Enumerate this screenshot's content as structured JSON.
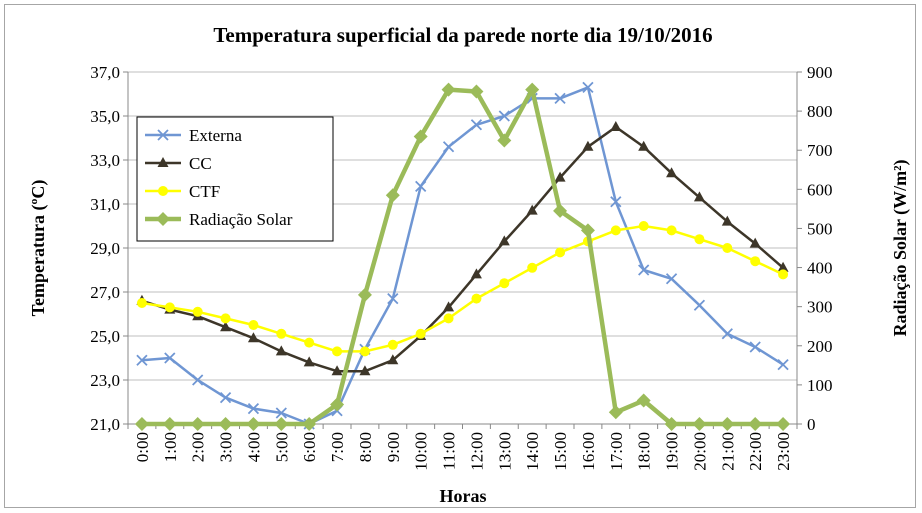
{
  "chart_data": {
    "type": "line",
    "title": "Temperatura superficial da parede norte dia 19/10/2016",
    "xlabel": "Horas",
    "ylabel": "Temperatura (ºC)",
    "y2label": "Radiação Solar (W/m²)",
    "categories": [
      "0:00",
      "1:00",
      "2:00",
      "3:00",
      "4:00",
      "5:00",
      "6:00",
      "7:00",
      "8:00",
      "9:00",
      "10:00",
      "11:00",
      "12:00",
      "13:00",
      "14:00",
      "15:00",
      "16:00",
      "17:00",
      "18:00",
      "19:00",
      "20:00",
      "21:00",
      "22:00",
      "23:00"
    ],
    "ylim": [
      21,
      37
    ],
    "y_ticks": [
      "21,0",
      "23,0",
      "25,0",
      "27,0",
      "29,0",
      "31,0",
      "33,0",
      "35,0",
      "37,0"
    ],
    "y2lim": [
      0,
      900
    ],
    "y2_ticks": [
      "0",
      "100",
      "200",
      "300",
      "400",
      "500",
      "600",
      "700",
      "800",
      "900"
    ],
    "grid": true,
    "legend_position": "top-left",
    "series": [
      {
        "name": "Externa",
        "axis": "left",
        "color": "#6f96d3",
        "marker": "x",
        "values": [
          23.9,
          24.0,
          23.0,
          22.2,
          21.7,
          21.5,
          21.0,
          21.6,
          24.4,
          26.7,
          31.8,
          33.6,
          34.6,
          35.0,
          35.8,
          35.8,
          36.3,
          31.1,
          28.0,
          27.6,
          26.4,
          25.1,
          24.5,
          23.7
        ]
      },
      {
        "name": "CC",
        "axis": "left",
        "color": "#3d3629",
        "marker": "triangle",
        "values": [
          26.6,
          26.2,
          25.9,
          25.4,
          24.9,
          24.3,
          23.8,
          23.4,
          23.4,
          23.9,
          25.0,
          26.3,
          27.8,
          29.3,
          30.7,
          32.2,
          33.6,
          34.5,
          33.6,
          32.4,
          31.3,
          30.2,
          29.2,
          28.1
        ]
      },
      {
        "name": "CTF",
        "axis": "left",
        "color": "#ffff00",
        "marker": "circle",
        "values": [
          26.5,
          26.3,
          26.1,
          25.8,
          25.5,
          25.1,
          24.7,
          24.3,
          24.3,
          24.6,
          25.1,
          25.8,
          26.7,
          27.4,
          28.1,
          28.8,
          29.3,
          29.8,
          30.0,
          29.8,
          29.4,
          29.0,
          28.4,
          27.8
        ]
      },
      {
        "name": "Radiação Solar",
        "axis": "right",
        "color": "#9bbb59",
        "marker": "diamond",
        "values": [
          0,
          0,
          0,
          0,
          0,
          0,
          0,
          50,
          330,
          585,
          735,
          855,
          850,
          725,
          855,
          545,
          495,
          30,
          60,
          0,
          0,
          0,
          0,
          0
        ]
      }
    ]
  }
}
